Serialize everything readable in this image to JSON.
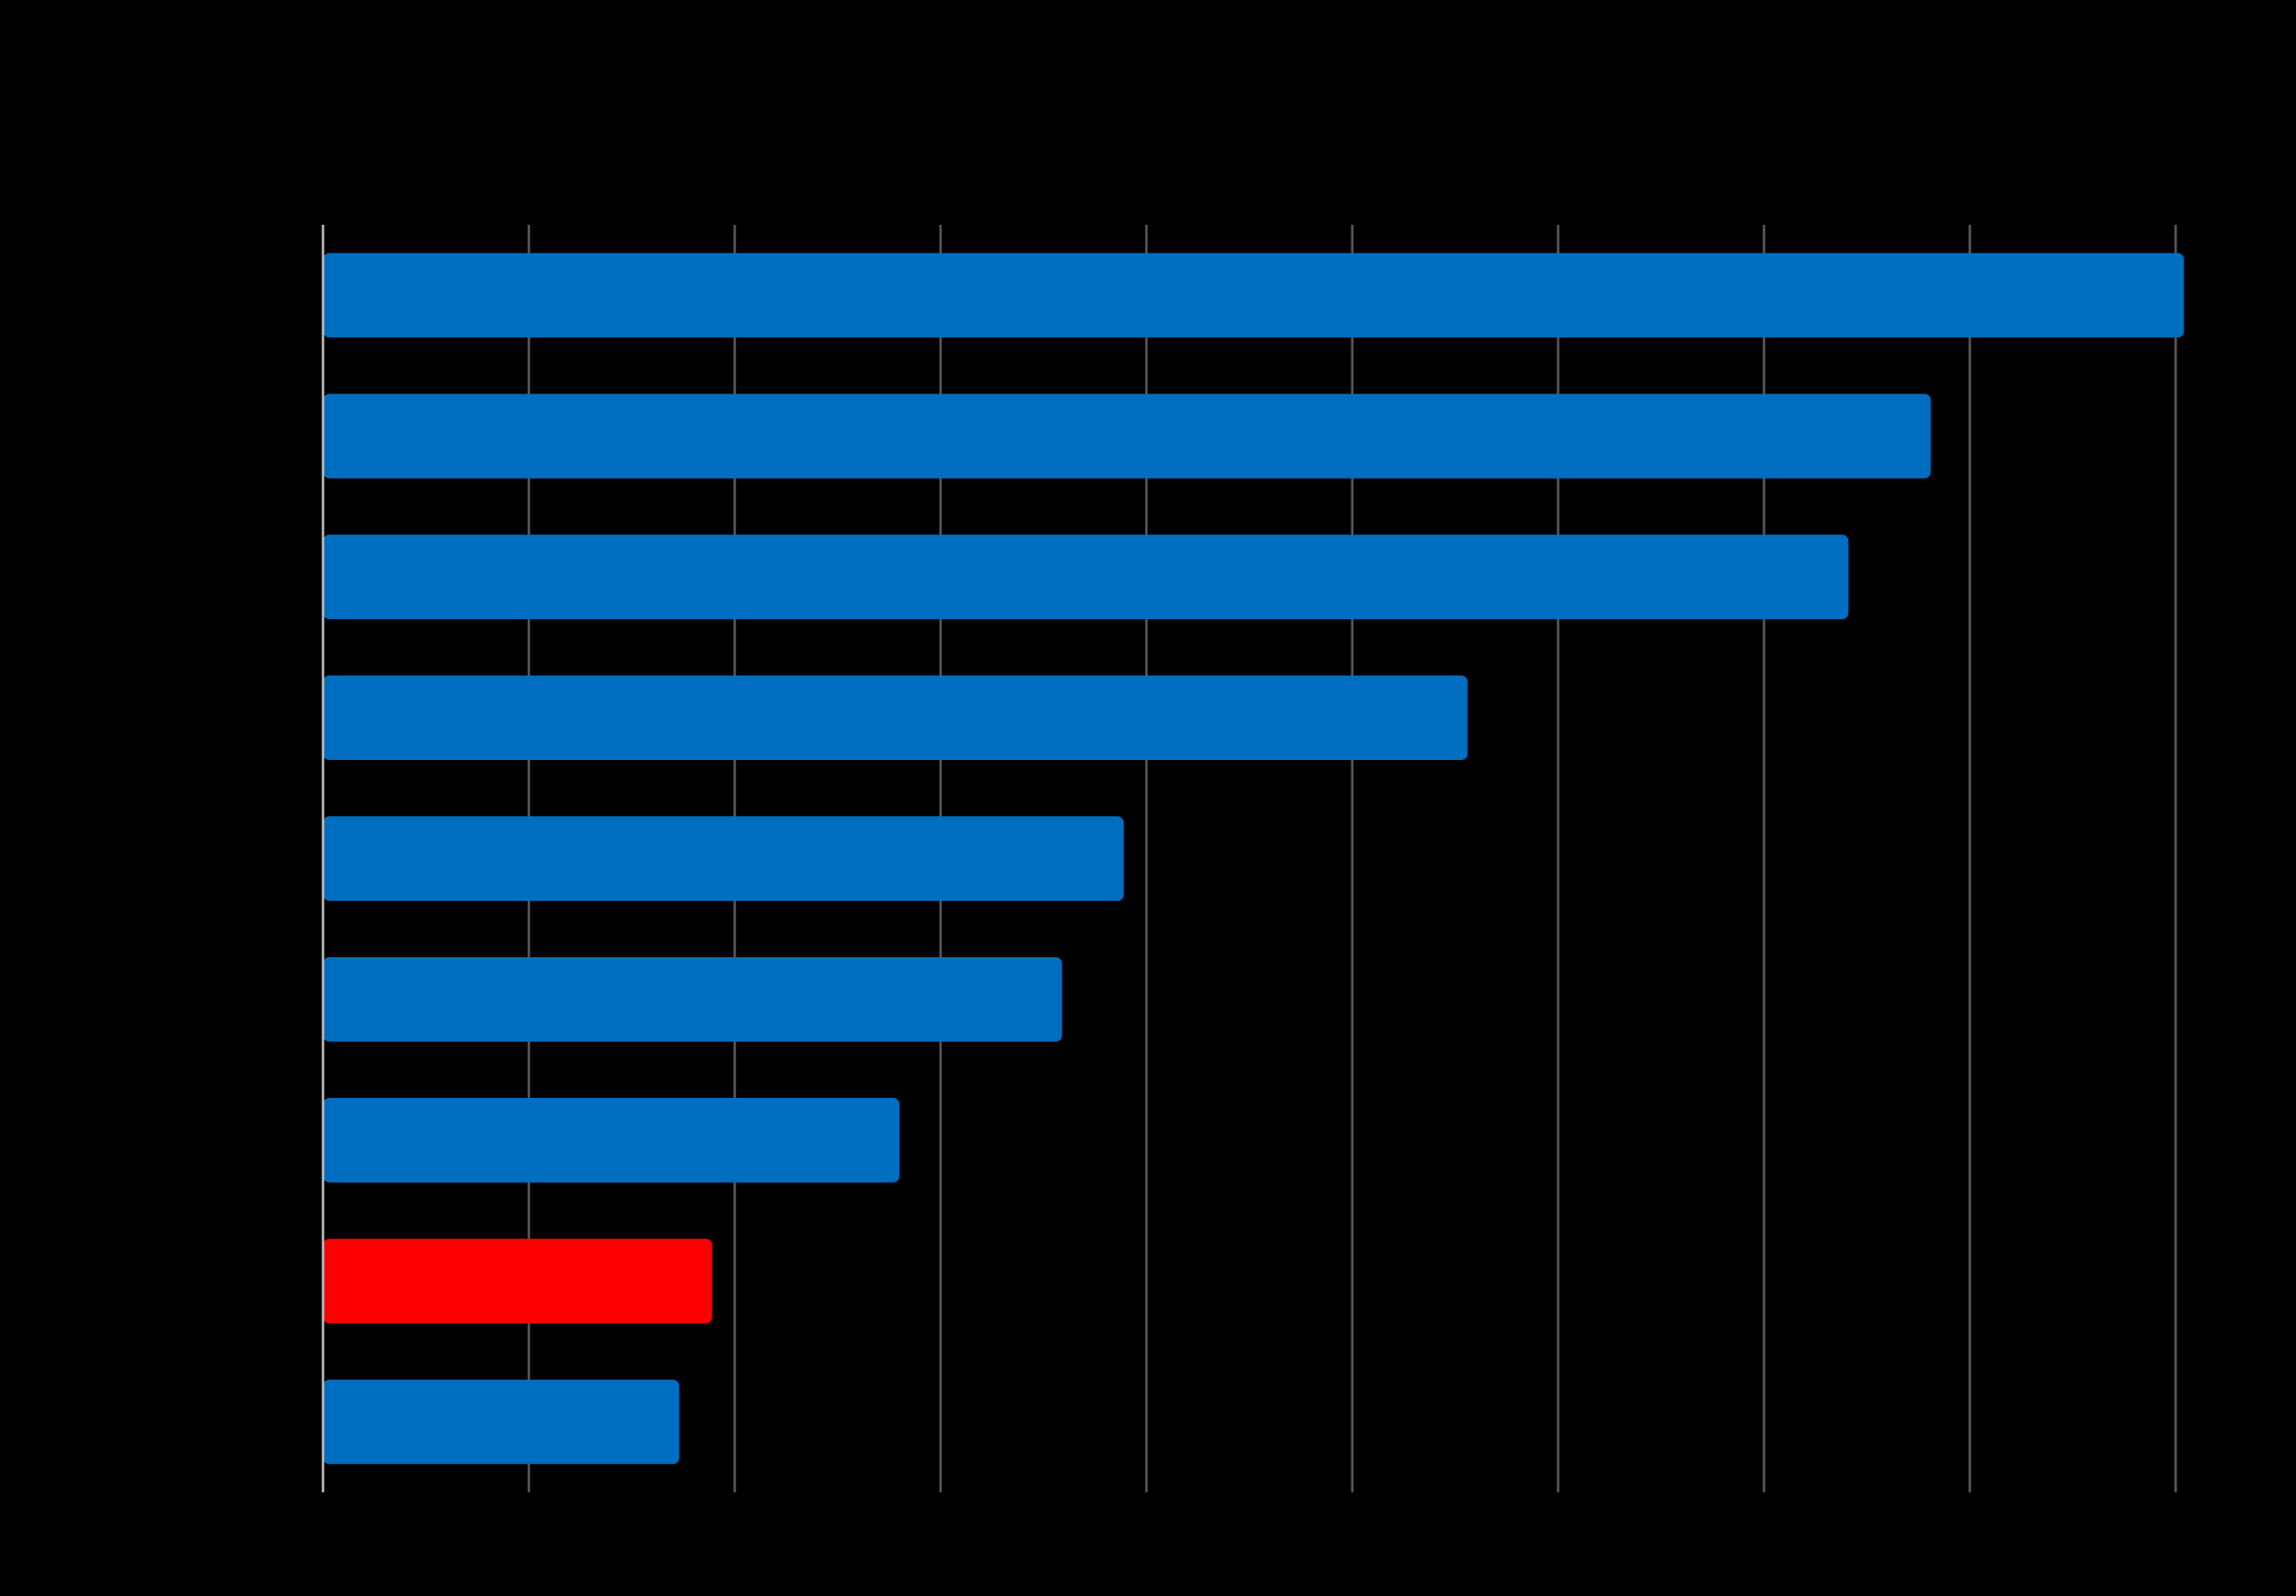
{
  "chart_data": {
    "type": "bar",
    "orientation": "horizontal",
    "grid": true,
    "xlim": [
      0,
      9
    ],
    "x_tick_interval": 1,
    "categories": [
      "",
      "",
      "",
      "",
      "",
      "",
      "",
      "",
      ""
    ],
    "series": [
      {
        "values": [
          9.04,
          7.81,
          7.41,
          5.56,
          3.89,
          3.59,
          2.8,
          1.89,
          1.73
        ]
      }
    ],
    "bar_colors": [
      "#006ec0",
      "#006ec0",
      "#006ec0",
      "#006ec0",
      "#006ec0",
      "#006ec0",
      "#006ec0",
      "#ff0000",
      "#006ec0"
    ],
    "highlight_color": "#ff0000",
    "base_color": "#006ec0",
    "background": "#000000"
  }
}
